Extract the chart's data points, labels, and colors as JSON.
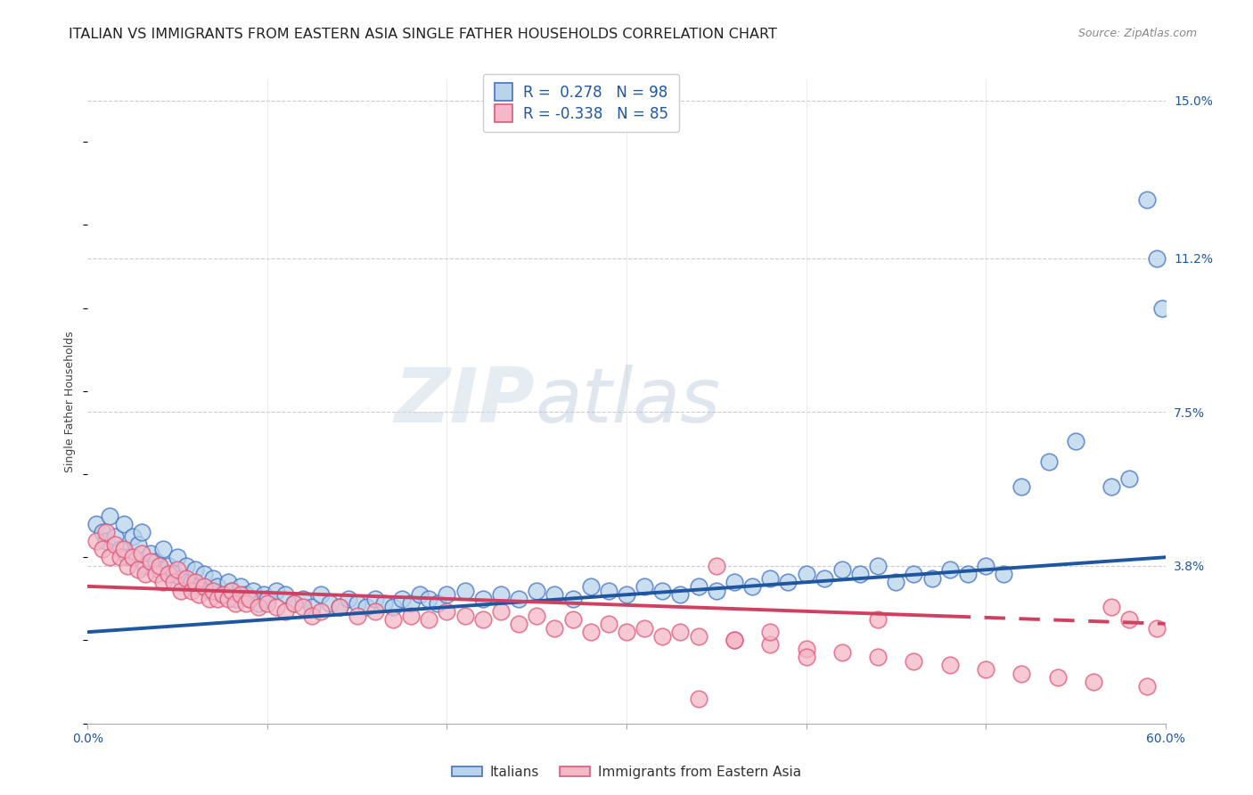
{
  "title": "ITALIAN VS IMMIGRANTS FROM EASTERN ASIA SINGLE FATHER HOUSEHOLDS CORRELATION CHART",
  "source": "Source: ZipAtlas.com",
  "ylabel": "Single Father Households",
  "xlim": [
    0.0,
    0.6
  ],
  "ylim": [
    0.0,
    0.155
  ],
  "ytick_positions": [
    0.038,
    0.075,
    0.112,
    0.15
  ],
  "ytick_labels": [
    "3.8%",
    "7.5%",
    "11.2%",
    "15.0%"
  ],
  "blue_fill": "#b8d4ea",
  "blue_edge": "#4472c4",
  "pink_fill": "#f4b8c8",
  "pink_edge": "#e05878",
  "blue_line_color": "#1e56a0",
  "pink_line_color": "#d04060",
  "R_blue": 0.278,
  "N_blue": 98,
  "R_pink": -0.338,
  "N_pink": 85,
  "legend_label_blue": "Italians",
  "legend_label_pink": "Immigrants from Eastern Asia",
  "watermark_zip": "ZIP",
  "watermark_atlas": "atlas",
  "title_fontsize": 11.5,
  "source_fontsize": 9,
  "axis_label_fontsize": 9,
  "tick_fontsize": 10,
  "grid_color": "#cccccc",
  "background_color": "#ffffff",
  "blue_line_start_y": 0.022,
  "blue_line_end_y": 0.04,
  "pink_line_start_y": 0.033,
  "pink_line_end_y": 0.024,
  "blue_x": [
    0.005,
    0.008,
    0.01,
    0.012,
    0.015,
    0.018,
    0.02,
    0.022,
    0.025,
    0.028,
    0.03,
    0.032,
    0.035,
    0.038,
    0.04,
    0.042,
    0.045,
    0.048,
    0.05,
    0.052,
    0.055,
    0.058,
    0.06,
    0.062,
    0.065,
    0.068,
    0.07,
    0.072,
    0.075,
    0.078,
    0.08,
    0.082,
    0.085,
    0.088,
    0.09,
    0.092,
    0.095,
    0.098,
    0.1,
    0.105,
    0.11,
    0.115,
    0.12,
    0.125,
    0.13,
    0.135,
    0.14,
    0.145,
    0.15,
    0.155,
    0.16,
    0.165,
    0.17,
    0.175,
    0.18,
    0.185,
    0.19,
    0.195,
    0.2,
    0.21,
    0.22,
    0.23,
    0.24,
    0.25,
    0.26,
    0.27,
    0.28,
    0.29,
    0.3,
    0.31,
    0.32,
    0.33,
    0.34,
    0.35,
    0.36,
    0.37,
    0.38,
    0.39,
    0.4,
    0.41,
    0.42,
    0.43,
    0.44,
    0.45,
    0.46,
    0.47,
    0.48,
    0.49,
    0.5,
    0.51,
    0.52,
    0.535,
    0.55,
    0.57,
    0.58,
    0.59,
    0.595,
    0.598
  ],
  "blue_y": [
    0.048,
    0.046,
    0.044,
    0.05,
    0.045,
    0.042,
    0.048,
    0.04,
    0.045,
    0.043,
    0.046,
    0.038,
    0.041,
    0.039,
    0.037,
    0.042,
    0.038,
    0.036,
    0.04,
    0.035,
    0.038,
    0.034,
    0.037,
    0.033,
    0.036,
    0.032,
    0.035,
    0.033,
    0.031,
    0.034,
    0.032,
    0.03,
    0.033,
    0.031,
    0.03,
    0.032,
    0.029,
    0.031,
    0.03,
    0.032,
    0.031,
    0.029,
    0.03,
    0.028,
    0.031,
    0.029,
    0.028,
    0.03,
    0.029,
    0.028,
    0.03,
    0.029,
    0.028,
    0.03,
    0.029,
    0.031,
    0.03,
    0.029,
    0.031,
    0.032,
    0.03,
    0.031,
    0.03,
    0.032,
    0.031,
    0.03,
    0.033,
    0.032,
    0.031,
    0.033,
    0.032,
    0.031,
    0.033,
    0.032,
    0.034,
    0.033,
    0.035,
    0.034,
    0.036,
    0.035,
    0.037,
    0.036,
    0.038,
    0.034,
    0.036,
    0.035,
    0.037,
    0.036,
    0.038,
    0.036,
    0.057,
    0.063,
    0.068,
    0.057,
    0.059,
    0.126,
    0.112,
    0.1
  ],
  "pink_x": [
    0.005,
    0.008,
    0.01,
    0.012,
    0.015,
    0.018,
    0.02,
    0.022,
    0.025,
    0.028,
    0.03,
    0.032,
    0.035,
    0.038,
    0.04,
    0.042,
    0.045,
    0.048,
    0.05,
    0.052,
    0.055,
    0.058,
    0.06,
    0.062,
    0.065,
    0.068,
    0.07,
    0.072,
    0.075,
    0.078,
    0.08,
    0.082,
    0.085,
    0.088,
    0.09,
    0.095,
    0.1,
    0.105,
    0.11,
    0.115,
    0.12,
    0.125,
    0.13,
    0.14,
    0.15,
    0.16,
    0.17,
    0.18,
    0.19,
    0.2,
    0.21,
    0.22,
    0.23,
    0.24,
    0.25,
    0.26,
    0.27,
    0.28,
    0.29,
    0.3,
    0.31,
    0.32,
    0.33,
    0.34,
    0.35,
    0.36,
    0.38,
    0.4,
    0.42,
    0.44,
    0.46,
    0.48,
    0.5,
    0.52,
    0.54,
    0.56,
    0.57,
    0.58,
    0.59,
    0.595,
    0.34,
    0.36,
    0.38,
    0.4,
    0.44
  ],
  "pink_y": [
    0.044,
    0.042,
    0.046,
    0.04,
    0.043,
    0.04,
    0.042,
    0.038,
    0.04,
    0.037,
    0.041,
    0.036,
    0.039,
    0.036,
    0.038,
    0.034,
    0.036,
    0.034,
    0.037,
    0.032,
    0.035,
    0.032,
    0.034,
    0.031,
    0.033,
    0.03,
    0.032,
    0.03,
    0.031,
    0.03,
    0.032,
    0.029,
    0.031,
    0.029,
    0.03,
    0.028,
    0.029,
    0.028,
    0.027,
    0.029,
    0.028,
    0.026,
    0.027,
    0.028,
    0.026,
    0.027,
    0.025,
    0.026,
    0.025,
    0.027,
    0.026,
    0.025,
    0.027,
    0.024,
    0.026,
    0.023,
    0.025,
    0.022,
    0.024,
    0.022,
    0.023,
    0.021,
    0.022,
    0.021,
    0.038,
    0.02,
    0.019,
    0.018,
    0.017,
    0.016,
    0.015,
    0.014,
    0.013,
    0.012,
    0.011,
    0.01,
    0.028,
    0.025,
    0.009,
    0.023,
    0.006,
    0.02,
    0.022,
    0.016,
    0.025
  ]
}
